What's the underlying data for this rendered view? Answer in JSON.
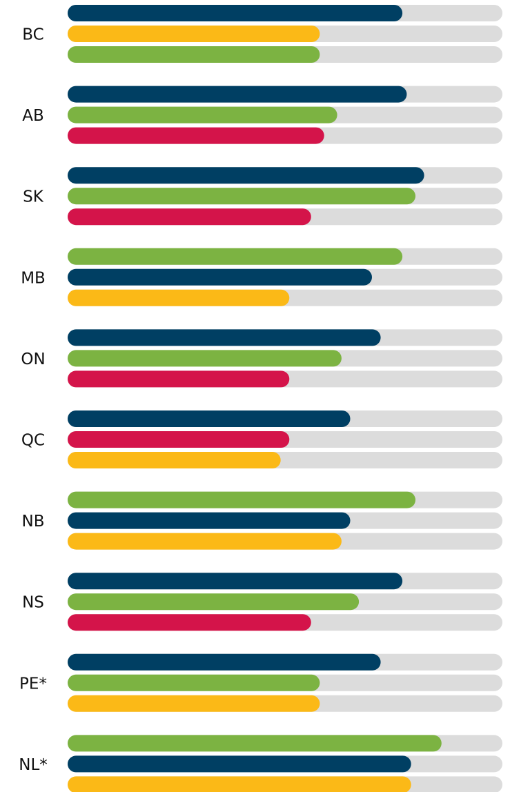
{
  "chart_data": {
    "type": "bar",
    "xlim": [
      0,
      100
    ],
    "track_color": "#dcdcdc",
    "groups": [
      {
        "label": "BC",
        "bars": [
          {
            "color": "#003f63",
            "value": 77
          },
          {
            "color": "#fbb917",
            "value": 58
          },
          {
            "color": "#7cb342",
            "value": 58
          }
        ]
      },
      {
        "label": "AB",
        "bars": [
          {
            "color": "#003f63",
            "value": 78
          },
          {
            "color": "#7cb342",
            "value": 62
          },
          {
            "color": "#d4144a",
            "value": 59
          }
        ]
      },
      {
        "label": "SK",
        "bars": [
          {
            "color": "#003f63",
            "value": 82
          },
          {
            "color": "#7cb342",
            "value": 80
          },
          {
            "color": "#d4144a",
            "value": 56
          }
        ]
      },
      {
        "label": "MB",
        "bars": [
          {
            "color": "#7cb342",
            "value": 77
          },
          {
            "color": "#003f63",
            "value": 70
          },
          {
            "color": "#fbb917",
            "value": 51
          }
        ]
      },
      {
        "label": "ON",
        "bars": [
          {
            "color": "#003f63",
            "value": 72
          },
          {
            "color": "#7cb342",
            "value": 63
          },
          {
            "color": "#d4144a",
            "value": 51
          }
        ]
      },
      {
        "label": "QC",
        "bars": [
          {
            "color": "#003f63",
            "value": 65
          },
          {
            "color": "#d4144a",
            "value": 51
          },
          {
            "color": "#fbb917",
            "value": 49
          }
        ]
      },
      {
        "label": "NB",
        "bars": [
          {
            "color": "#7cb342",
            "value": 80
          },
          {
            "color": "#003f63",
            "value": 65
          },
          {
            "color": "#fbb917",
            "value": 63
          }
        ]
      },
      {
        "label": "NS",
        "bars": [
          {
            "color": "#003f63",
            "value": 77
          },
          {
            "color": "#7cb342",
            "value": 67
          },
          {
            "color": "#d4144a",
            "value": 56
          }
        ]
      },
      {
        "label": "PE*",
        "bars": [
          {
            "color": "#003f63",
            "value": 72
          },
          {
            "color": "#7cb342",
            "value": 58
          },
          {
            "color": "#fbb917",
            "value": 58
          }
        ]
      },
      {
        "label": "NL*",
        "bars": [
          {
            "color": "#7cb342",
            "value": 86
          },
          {
            "color": "#003f63",
            "value": 79
          },
          {
            "color": "#fbb917",
            "value": 79
          }
        ]
      }
    ]
  }
}
